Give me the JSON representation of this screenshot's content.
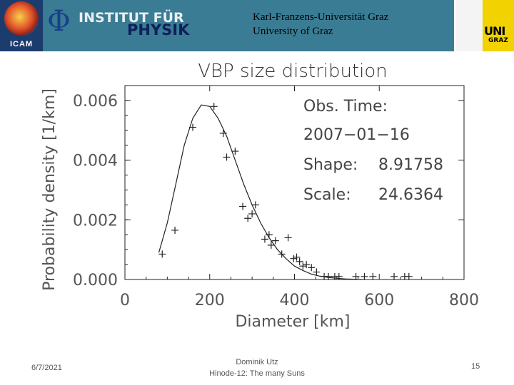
{
  "header": {
    "icam_label": "ICAM",
    "phi_symbol": "Φ",
    "institute_line1": "INSTITUT FÜR",
    "institute_line2": "PHYSIK",
    "university_line1": "Karl-Franzens-Universität Graz",
    "university_line2": "University of Graz",
    "uni_logo_line1": "UNI",
    "uni_logo_line2": "GRAZ",
    "band_color": "#3a7c93"
  },
  "chart_data": {
    "type": "scatter",
    "title": "VBP size distribution",
    "xlabel": "Diameter [km]",
    "ylabel": "Probability density [1/km]",
    "xlim": [
      0,
      800
    ],
    "ylim": [
      0,
      0.0065
    ],
    "xticks": [
      "0",
      "200",
      "400",
      "600",
      "800"
    ],
    "yticks": [
      "0.000",
      "0.002",
      "0.004",
      "0.006"
    ],
    "annotations": {
      "obs_label": "Obs. Time:",
      "obs_value": "2007−01−16",
      "shape_label": "Shape:",
      "shape_value": "8.91758",
      "scale_label": "Scale:",
      "scale_value": "24.6364"
    },
    "points": [
      {
        "x": 88,
        "y": 0.00085
      },
      {
        "x": 118,
        "y": 0.00165
      },
      {
        "x": 160,
        "y": 0.0051
      },
      {
        "x": 210,
        "y": 0.0058
      },
      {
        "x": 232,
        "y": 0.0049
      },
      {
        "x": 240,
        "y": 0.0041
      },
      {
        "x": 260,
        "y": 0.0043
      },
      {
        "x": 278,
        "y": 0.00245
      },
      {
        "x": 290,
        "y": 0.00205
      },
      {
        "x": 300,
        "y": 0.0022
      },
      {
        "x": 308,
        "y": 0.0025
      },
      {
        "x": 330,
        "y": 0.00135
      },
      {
        "x": 340,
        "y": 0.0015
      },
      {
        "x": 345,
        "y": 0.00115
      },
      {
        "x": 355,
        "y": 0.0013
      },
      {
        "x": 370,
        "y": 0.00085
      },
      {
        "x": 385,
        "y": 0.0014
      },
      {
        "x": 398,
        "y": 0.0007
      },
      {
        "x": 405,
        "y": 0.00075
      },
      {
        "x": 412,
        "y": 0.0006
      },
      {
        "x": 420,
        "y": 0.00045
      },
      {
        "x": 428,
        "y": 0.0005
      },
      {
        "x": 440,
        "y": 0.0004
      },
      {
        "x": 452,
        "y": 0.00025
      },
      {
        "x": 470,
        "y": 0.0001
      },
      {
        "x": 480,
        "y": 0.0001
      },
      {
        "x": 495,
        "y": 0.0001
      },
      {
        "x": 505,
        "y": 0.0001
      },
      {
        "x": 545,
        "y": 0.0001
      },
      {
        "x": 565,
        "y": 0.0001
      },
      {
        "x": 585,
        "y": 0.0001
      },
      {
        "x": 635,
        "y": 0.0001
      },
      {
        "x": 660,
        "y": 0.0001
      },
      {
        "x": 670,
        "y": 0.0001
      }
    ],
    "fit_curve": {
      "x": [
        80,
        100,
        120,
        140,
        160,
        180,
        200,
        220,
        240,
        260,
        280,
        300,
        320,
        340,
        360,
        380,
        400,
        420,
        440,
        460,
        480,
        500,
        520,
        540,
        560
      ],
      "y": [
        0.0009,
        0.0019,
        0.0032,
        0.0045,
        0.0054,
        0.00585,
        0.0058,
        0.0054,
        0.0048,
        0.004,
        0.0032,
        0.0025,
        0.0019,
        0.0014,
        0.001,
        0.0007,
        0.00045,
        0.0003,
        0.00018,
        0.00011,
        7e-05,
        4e-05,
        2e-05,
        1e-05,
        0.0
      ]
    }
  },
  "footer": {
    "date": "6/7/2021",
    "author": "Dominik Utz",
    "talk": "Hinode-12: The many Suns",
    "page": "15"
  }
}
